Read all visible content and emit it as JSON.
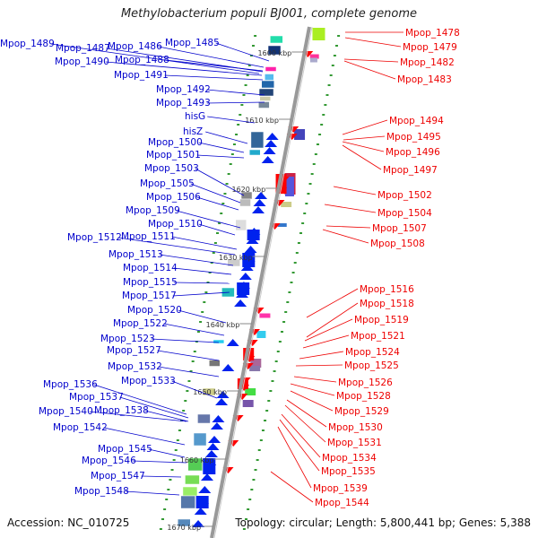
{
  "title": "Methylobacterium populi BJ001, complete genome",
  "footer": {
    "accession": "Accession: NC_010725",
    "summary": "Topology: circular; Length: 5,800,441 bp; Genes: 5,388"
  },
  "colors": {
    "left_label": "#0000cc",
    "right_label": "#ee0000",
    "backbone": "#999999",
    "tick": "#339933"
  },
  "ruler": [
    {
      "label": "1600 kbp"
    },
    {
      "label": "1610 kbp"
    },
    {
      "label": "1620 kbp"
    },
    {
      "label": "1630 kbp"
    },
    {
      "label": "1640 kbp"
    },
    {
      "label": "1650 kbp"
    },
    {
      "label": "1660 kbp"
    },
    {
      "label": "1670 kbp"
    }
  ],
  "left_labels": [
    "Mpop_1489",
    "Mpop_1487",
    "Mpop_1486",
    "Mpop_1485",
    "Mpop_1490",
    "Mpop_1488",
    "Mpop_1491",
    "Mpop_1492",
    "Mpop_1493",
    "hisG",
    "hisZ",
    "Mpop_1500",
    "Mpop_1501",
    "Mpop_1503",
    "Mpop_1505",
    "Mpop_1506",
    "Mpop_1509",
    "Mpop_1510",
    "Mpop_1512",
    "Mpop_1511",
    "Mpop_1513",
    "Mpop_1514",
    "Mpop_1515",
    "Mpop_1517",
    "Mpop_1520",
    "Mpop_1522",
    "Mpop_1523",
    "Mpop_1527",
    "Mpop_1532",
    "Mpop_1533",
    "Mpop_1536",
    "Mpop_1537",
    "Mpop_1540",
    "Mpop_1538",
    "Mpop_1542",
    "Mpop_1545",
    "Mpop_1546",
    "Mpop_1547",
    "Mpop_1548"
  ],
  "right_labels": [
    "Mpop_1478",
    "Mpop_1479",
    "Mpop_1482",
    "Mpop_1483",
    "Mpop_1494",
    "Mpop_1495",
    "Mpop_1496",
    "Mpop_1497",
    "Mpop_1502",
    "Mpop_1504",
    "Mpop_1507",
    "Mpop_1508",
    "Mpop_1516",
    "Mpop_1518",
    "Mpop_1519",
    "Mpop_1521",
    "Mpop_1524",
    "Mpop_1525",
    "Mpop_1526",
    "Mpop_1528",
    "Mpop_1529",
    "Mpop_1530",
    "Mpop_1531",
    "Mpop_1534",
    "Mpop_1535",
    "Mpop_1539",
    "Mpop_1544"
  ]
}
